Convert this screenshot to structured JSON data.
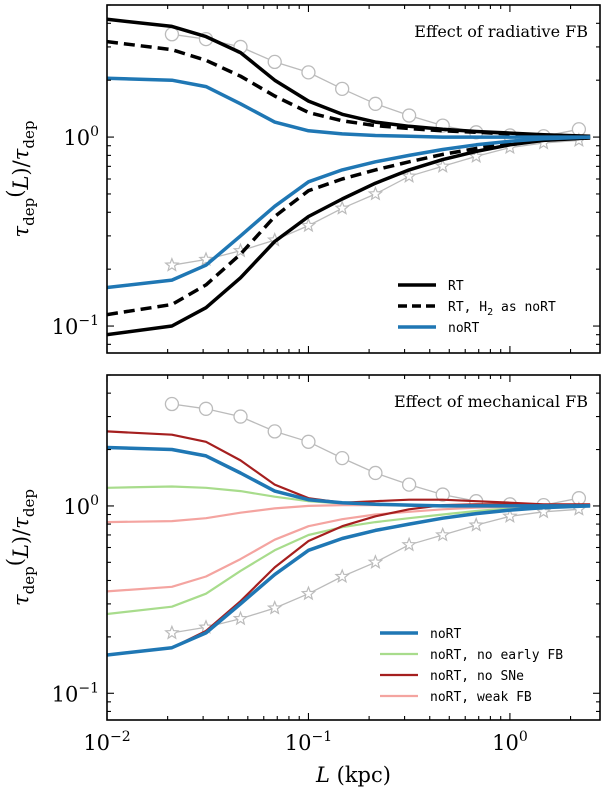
{
  "chart_data": [
    {
      "type": "line",
      "title": "Effect of radiative FB",
      "ylabel": "τdep(L)/τdep",
      "xlabel": "",
      "xscale": "log",
      "yscale": "log",
      "xlim": [
        0.01,
        2.8
      ],
      "ylim": [
        0.072,
        5.0
      ],
      "yticks": [
        {
          "value": 0.1,
          "base": "10",
          "exp": "−1"
        },
        {
          "value": 1.0,
          "base": "10",
          "exp": "0"
        }
      ],
      "legend_position": "lower-right",
      "legend": [
        {
          "label": "RT",
          "color": "#000000",
          "dash": "solid"
        },
        {
          "label": "RT, H2 as noRT",
          "color": "#000000",
          "dash": "dashed"
        },
        {
          "label": "noRT",
          "color": "#1f77b4",
          "dash": "solid"
        }
      ],
      "series": [
        {
          "color": "#000000",
          "dash": "solid",
          "width": 3.5,
          "x": [
            0.01,
            0.021,
            0.031,
            0.046,
            0.068,
            0.1,
            0.147,
            0.215,
            0.316,
            0.464,
            0.68,
            1.0,
            1.47,
            2.5
          ],
          "y": [
            4.2,
            3.85,
            3.4,
            2.8,
            2.0,
            1.55,
            1.32,
            1.2,
            1.14,
            1.1,
            1.07,
            1.05,
            1.03,
            1.01
          ]
        },
        {
          "color": "#000000",
          "dash": "solid",
          "width": 3.5,
          "x": [
            0.01,
            0.021,
            0.031,
            0.046,
            0.068,
            0.1,
            0.147,
            0.215,
            0.316,
            0.464,
            0.68,
            1.0,
            1.47,
            2.5
          ],
          "y": [
            0.09,
            0.1,
            0.125,
            0.18,
            0.28,
            0.38,
            0.47,
            0.57,
            0.67,
            0.76,
            0.84,
            0.91,
            0.96,
            0.99
          ]
        },
        {
          "color": "#000000",
          "dash": "dashed",
          "width": 3.5,
          "x": [
            0.01,
            0.021,
            0.031,
            0.046,
            0.068,
            0.1,
            0.147,
            0.215,
            0.316,
            0.464,
            0.68,
            1.0,
            1.47,
            2.5
          ],
          "y": [
            3.2,
            2.9,
            2.55,
            2.1,
            1.65,
            1.35,
            1.22,
            1.15,
            1.11,
            1.08,
            1.06,
            1.04,
            1.02,
            1.01
          ]
        },
        {
          "color": "#000000",
          "dash": "dashed",
          "width": 3.5,
          "x": [
            0.01,
            0.021,
            0.031,
            0.046,
            0.068,
            0.1,
            0.147,
            0.215,
            0.316,
            0.464,
            0.68,
            1.0,
            1.47,
            2.5
          ],
          "y": [
            0.115,
            0.13,
            0.165,
            0.24,
            0.38,
            0.52,
            0.6,
            0.67,
            0.74,
            0.81,
            0.87,
            0.93,
            0.97,
            0.99
          ]
        },
        {
          "color": "#1f77b4",
          "dash": "solid",
          "width": 3.5,
          "x": [
            0.01,
            0.021,
            0.031,
            0.046,
            0.068,
            0.1,
            0.147,
            0.215,
            0.316,
            0.464,
            0.68,
            1.0,
            1.47,
            2.5
          ],
          "y": [
            2.05,
            2.0,
            1.85,
            1.5,
            1.2,
            1.08,
            1.04,
            1.02,
            1.01,
            1.0,
            1.0,
            1.0,
            1.0,
            1.0
          ]
        },
        {
          "color": "#1f77b4",
          "dash": "solid",
          "width": 3.5,
          "x": [
            0.01,
            0.021,
            0.031,
            0.046,
            0.068,
            0.1,
            0.147,
            0.215,
            0.316,
            0.464,
            0.68,
            1.0,
            1.47,
            2.5
          ],
          "y": [
            0.16,
            0.175,
            0.21,
            0.3,
            0.43,
            0.58,
            0.67,
            0.74,
            0.8,
            0.86,
            0.91,
            0.95,
            0.98,
            1.0
          ]
        }
      ],
      "reference": [
        {
          "marker": "circle",
          "color": "#bbbbbb",
          "x": [
            0.021,
            0.031,
            0.046,
            0.068,
            0.1,
            0.147,
            0.215,
            0.316,
            0.464,
            0.68,
            1.0,
            1.47,
            2.2
          ],
          "y": [
            3.5,
            3.3,
            3.0,
            2.5,
            2.2,
            1.8,
            1.5,
            1.3,
            1.15,
            1.06,
            1.02,
            1.01,
            1.1
          ]
        },
        {
          "marker": "star",
          "color": "#bbbbbb",
          "x": [
            0.021,
            0.031,
            0.046,
            0.068,
            0.1,
            0.147,
            0.215,
            0.316,
            0.464,
            0.68,
            1.0,
            1.47,
            2.2
          ],
          "y": [
            0.21,
            0.225,
            0.25,
            0.285,
            0.34,
            0.42,
            0.5,
            0.62,
            0.7,
            0.79,
            0.88,
            0.93,
            0.96
          ]
        }
      ]
    },
    {
      "type": "line",
      "title": "Effect of mechanical FB",
      "ylabel": "τdep(L)/τdep",
      "xlabel": "L (kpc)",
      "xscale": "log",
      "yscale": "log",
      "xlim": [
        0.01,
        2.8
      ],
      "ylim": [
        0.072,
        5.0
      ],
      "xticks": [
        {
          "value": 0.01,
          "base": "10",
          "exp": "−2"
        },
        {
          "value": 0.1,
          "base": "10",
          "exp": "−1"
        },
        {
          "value": 1.0,
          "base": "10",
          "exp": "0"
        }
      ],
      "yticks": [
        {
          "value": 0.1,
          "base": "10",
          "exp": "−1"
        },
        {
          "value": 1.0,
          "base": "10",
          "exp": "0"
        }
      ],
      "legend_position": "lower-right",
      "legend": [
        {
          "label": "noRT",
          "color": "#1f77b4",
          "width": 3.5
        },
        {
          "label": "noRT, no early FB",
          "color": "#a8dc8c",
          "width": 2.2
        },
        {
          "label": "noRT, no SNe",
          "color": "#a51f1f",
          "width": 2.2
        },
        {
          "label": "noRT, weak FB",
          "color": "#f4a4a0",
          "width": 2.2
        }
      ],
      "series": [
        {
          "color": "#a8dc8c",
          "dash": "solid",
          "width": 2.2,
          "x": [
            0.01,
            0.021,
            0.031,
            0.046,
            0.068,
            0.1,
            0.147,
            0.215,
            0.316,
            0.464,
            0.68,
            1.0,
            1.47,
            2.5
          ],
          "y": [
            1.25,
            1.27,
            1.25,
            1.2,
            1.12,
            1.06,
            1.03,
            1.02,
            1.01,
            1.0,
            1.0,
            1.0,
            1.0,
            1.0
          ]
        },
        {
          "color": "#a8dc8c",
          "dash": "solid",
          "width": 2.2,
          "x": [
            0.01,
            0.021,
            0.031,
            0.046,
            0.068,
            0.1,
            0.147,
            0.215,
            0.316,
            0.464,
            0.68,
            1.0,
            1.47,
            2.5
          ],
          "y": [
            0.265,
            0.29,
            0.34,
            0.45,
            0.58,
            0.7,
            0.77,
            0.82,
            0.86,
            0.9,
            0.94,
            0.97,
            0.99,
            1.0
          ]
        },
        {
          "color": "#f4a4a0",
          "dash": "solid",
          "width": 2.2,
          "x": [
            0.01,
            0.021,
            0.031,
            0.046,
            0.068,
            0.1,
            0.147,
            0.215,
            0.316,
            0.464,
            0.68,
            1.0,
            1.47,
            2.5
          ],
          "y": [
            0.82,
            0.83,
            0.86,
            0.92,
            0.97,
            1.0,
            1.01,
            1.01,
            1.01,
            1.0,
            1.0,
            1.0,
            1.0,
            1.0
          ]
        },
        {
          "color": "#f4a4a0",
          "dash": "solid",
          "width": 2.2,
          "x": [
            0.01,
            0.021,
            0.031,
            0.046,
            0.068,
            0.1,
            0.147,
            0.215,
            0.316,
            0.464,
            0.68,
            1.0,
            1.47,
            2.5
          ],
          "y": [
            0.35,
            0.37,
            0.42,
            0.52,
            0.66,
            0.78,
            0.85,
            0.9,
            0.93,
            0.96,
            0.98,
            0.99,
            1.0,
            1.0
          ]
        },
        {
          "color": "#a51f1f",
          "dash": "solid",
          "width": 2.2,
          "x": [
            0.01,
            0.021,
            0.031,
            0.046,
            0.068,
            0.1,
            0.147,
            0.215,
            0.316,
            0.464,
            0.68,
            1.0,
            1.47,
            2.5
          ],
          "y": [
            2.5,
            2.4,
            2.2,
            1.75,
            1.3,
            1.1,
            1.04,
            1.06,
            1.08,
            1.08,
            1.06,
            1.04,
            1.02,
            1.02
          ]
        },
        {
          "color": "#a51f1f",
          "dash": "solid",
          "width": 2.2,
          "x": [
            0.01,
            0.021,
            0.031,
            0.046,
            0.068,
            0.1,
            0.147,
            0.215,
            0.316,
            0.464,
            0.68,
            1.0,
            1.47,
            2.5
          ],
          "y": [
            0.16,
            0.175,
            0.215,
            0.31,
            0.47,
            0.65,
            0.78,
            0.88,
            0.96,
            1.01,
            1.02,
            1.02,
            1.01,
            1.01
          ]
        },
        {
          "color": "#1f77b4",
          "dash": "solid",
          "width": 3.5,
          "x": [
            0.01,
            0.021,
            0.031,
            0.046,
            0.068,
            0.1,
            0.147,
            0.215,
            0.316,
            0.464,
            0.68,
            1.0,
            1.47,
            2.5
          ],
          "y": [
            2.05,
            2.0,
            1.85,
            1.5,
            1.2,
            1.08,
            1.04,
            1.02,
            1.01,
            1.0,
            1.0,
            1.0,
            1.0,
            1.0
          ]
        },
        {
          "color": "#1f77b4",
          "dash": "solid",
          "width": 3.5,
          "x": [
            0.01,
            0.021,
            0.031,
            0.046,
            0.068,
            0.1,
            0.147,
            0.215,
            0.316,
            0.464,
            0.68,
            1.0,
            1.47,
            2.5
          ],
          "y": [
            0.16,
            0.175,
            0.21,
            0.3,
            0.43,
            0.58,
            0.67,
            0.74,
            0.8,
            0.86,
            0.91,
            0.95,
            0.98,
            1.0
          ]
        }
      ],
      "reference": [
        {
          "marker": "circle",
          "color": "#bbbbbb",
          "x": [
            0.021,
            0.031,
            0.046,
            0.068,
            0.1,
            0.147,
            0.215,
            0.316,
            0.464,
            0.68,
            1.0,
            1.47,
            2.2
          ],
          "y": [
            3.5,
            3.3,
            3.0,
            2.5,
            2.2,
            1.8,
            1.5,
            1.3,
            1.15,
            1.06,
            1.02,
            1.01,
            1.1
          ]
        },
        {
          "marker": "star",
          "color": "#bbbbbb",
          "x": [
            0.021,
            0.031,
            0.046,
            0.068,
            0.1,
            0.147,
            0.215,
            0.316,
            0.464,
            0.68,
            1.0,
            1.47,
            2.2
          ],
          "y": [
            0.21,
            0.225,
            0.25,
            0.285,
            0.34,
            0.42,
            0.5,
            0.62,
            0.7,
            0.79,
            0.88,
            0.93,
            0.96
          ]
        }
      ]
    }
  ]
}
